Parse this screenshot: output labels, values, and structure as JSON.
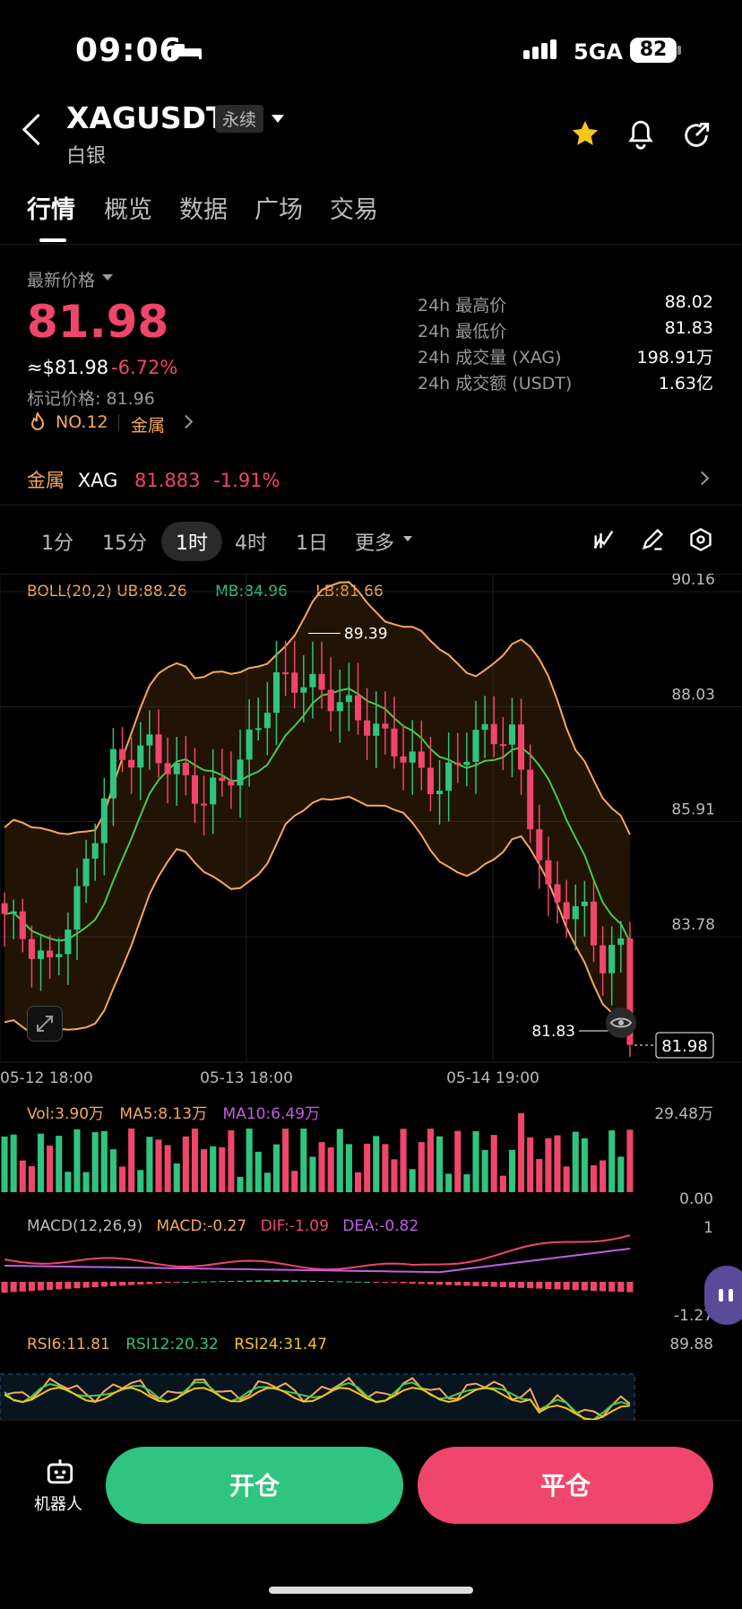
{
  "status": {
    "time": "09:06",
    "network": "5GA",
    "battery": "82"
  },
  "header": {
    "symbol": "XAGUSDT",
    "tag": "永续",
    "subtitle": "白银"
  },
  "tabs": [
    "行情",
    "概览",
    "数据",
    "广场",
    "交易"
  ],
  "price": {
    "label": "最新价格",
    "last": "81.98",
    "usd": "≈$81.98",
    "change": "-6.72%",
    "mark": "标记价格: 81.96",
    "rank": "NO.12",
    "category": "金属"
  },
  "stats": [
    {
      "label": "24h 最高价",
      "value": "88.02"
    },
    {
      "label": "24h 最低价",
      "value": "81.83"
    },
    {
      "label": "24h 成交量 (XAG)",
      "value": "198.91万"
    },
    {
      "label": "24h 成交额 (USDT)",
      "value": "1.63亿"
    }
  ],
  "related": {
    "category": "金属",
    "symbol": "XAG",
    "price": "81.883",
    "change": "-1.91%"
  },
  "intervals": [
    "1分",
    "15分",
    "1时",
    "4时",
    "1日",
    "更多"
  ],
  "indicators": {
    "boll": {
      "name": "BOLL(20,2)",
      "ub": "UB:88.26",
      "mb": "MB:84.96",
      "lb": "LB:81.66"
    },
    "vol": {
      "vol": "Vol:3.90万",
      "ma5": "MA5:8.13万",
      "ma10": "MA10:6.49万",
      "max": "29.48万",
      "min": "0.00"
    },
    "macd": {
      "name": "MACD(12,26,9)",
      "macd": "MACD:-0.27",
      "dif": "DIF:-1.09",
      "dea": "DEA:-0.82",
      "max": "1",
      "min": "-1.27"
    },
    "rsi": {
      "r6": "RSI6:11.81",
      "r12": "RSI12:20.32",
      "r24": "RSI24:31.47",
      "max": "89.88"
    }
  },
  "chart_data": {
    "type": "candlestick",
    "y_ticks": [
      "90.16",
      "88.03",
      "85.91",
      "83.78"
    ],
    "x_ticks": [
      "05-12 18:00",
      "05-13 18:00",
      "05-14 19:00"
    ],
    "high_label": "89.39",
    "low_label": "81.83",
    "current_label": "81.98"
  },
  "bottom": {
    "robot": "机器人",
    "open": "开仓",
    "close": "平仓"
  },
  "colors": {
    "up": "#2fc47f",
    "down": "#f0466b",
    "accent": "#f5a85d"
  }
}
